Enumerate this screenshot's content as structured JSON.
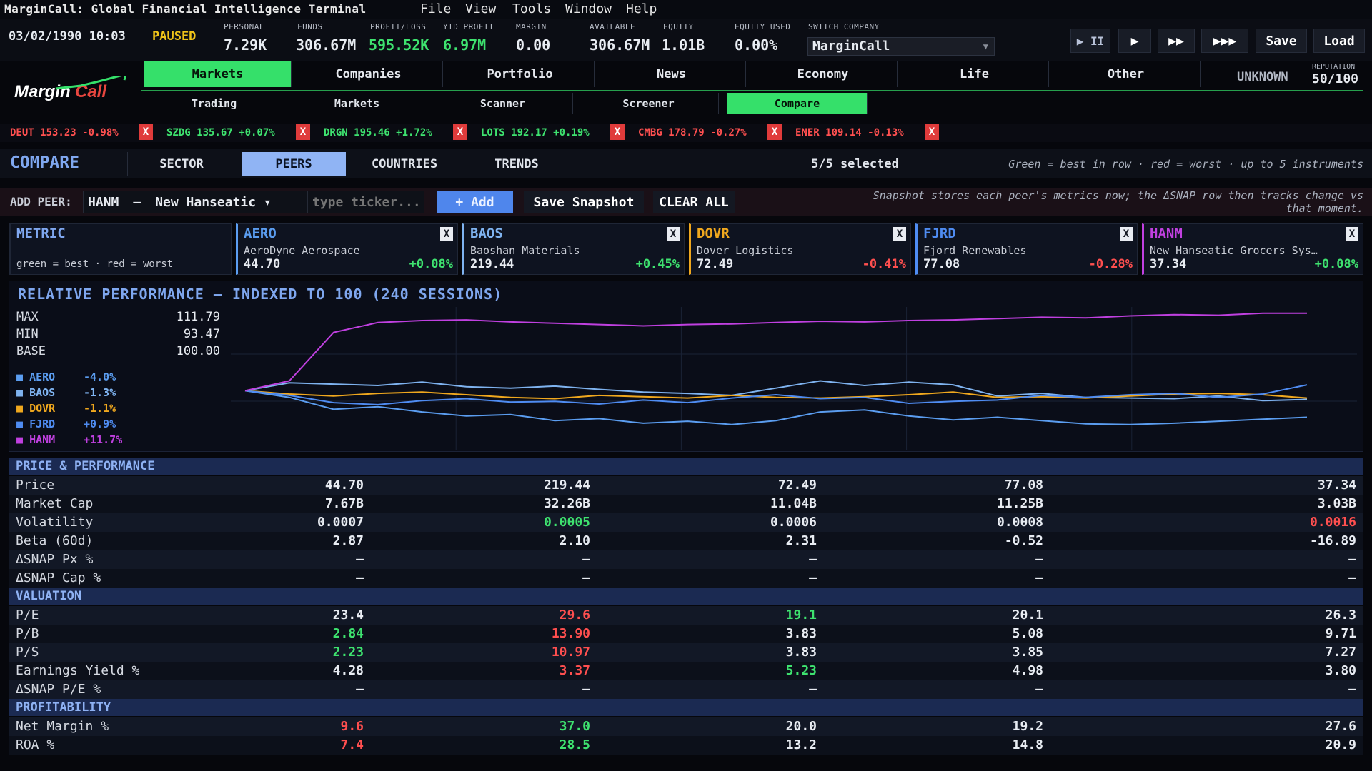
{
  "app": {
    "title": "MarginCall: Global Financial Intelligence Terminal",
    "menu": [
      "File",
      "View",
      "Tools",
      "Window",
      "Help"
    ],
    "logo": "MarginCall"
  },
  "status": {
    "datetime": "03/02/1990 10:03",
    "state": "PAUSED",
    "personal": {
      "label": "PERSONAL",
      "value": "7.29K"
    },
    "funds": {
      "label": "FUNDS",
      "value": "306.67M"
    },
    "pl": {
      "label": "PROFIT/LOSS",
      "value": "595.52K"
    },
    "ytd": {
      "label": "YTD PROFIT",
      "value": "6.97M"
    },
    "margin": {
      "label": "MARGIN",
      "value": "0.00"
    },
    "available": {
      "label": "AVAILABLE",
      "value": "306.67M"
    },
    "equity": {
      "label": "EQUITY",
      "value": "1.01B"
    },
    "equity_used": {
      "label": "EQUITY USED",
      "value": "0.00%"
    },
    "switch_company": {
      "label": "SWITCH COMPANY",
      "value": "MarginCall"
    },
    "controls": {
      "pause": "▶ II",
      "play": "▶",
      "fast": "▶▶",
      "fastest": "▶▶▶",
      "save": "Save",
      "load": "Load"
    }
  },
  "nav": {
    "tabs": [
      "Markets",
      "Companies",
      "Portfolio",
      "News",
      "Economy",
      "Life",
      "Other"
    ],
    "active": "Markets",
    "status": "UNKNOWN",
    "reputation_label": "REPUTATION",
    "reputation": "50/100"
  },
  "subnav": {
    "tabs": [
      "Trading",
      "Markets",
      "Scanner",
      "Screener",
      "Compare"
    ],
    "active": "Compare"
  },
  "ticker_strip": [
    {
      "text": "DEUT 153.23 -0.98%",
      "color": "#ff5050"
    },
    {
      "text": "SZDG 135.67 +0.07%",
      "color": "#3ee26f"
    },
    {
      "text": "DRGN 195.46 +1.72%",
      "color": "#3ee26f"
    },
    {
      "text": "LOTS 192.17 +0.19%",
      "color": "#3ee26f"
    },
    {
      "text": "CMBG 178.79 -0.27%",
      "color": "#ff5050"
    },
    {
      "text": "ENER 109.14 -0.13%",
      "color": "#ff5050"
    }
  ],
  "ticker_remove": "X",
  "compare": {
    "title": "COMPARE",
    "tabs": [
      "SECTOR",
      "PEERS",
      "COUNTRIES",
      "TRENDS"
    ],
    "active": "PEERS",
    "selected": "5/5 selected",
    "hint": "Green = best in row · red = worst · up to 5 instruments"
  },
  "add_peer": {
    "label": "ADD PEER:",
    "ticker": "HANM",
    "dash": "–",
    "company": "New Hanseatic ▾",
    "placeholder": "type ticker...",
    "add": "+ Add",
    "snapshot": "Save Snapshot",
    "clear": "CLEAR ALL",
    "note": "Snapshot stores each peer's metrics now; the ΔSNAP row then tracks change vs that moment."
  },
  "metric_card": {
    "title": "METRIC",
    "sub": "green = best · red = worst"
  },
  "peers": [
    {
      "ticker": "AERO",
      "name": "AeroDyne Aerospace",
      "price": "44.70",
      "change": "+0.08%",
      "up": true,
      "color": "#5b9df0"
    },
    {
      "ticker": "BAOS",
      "name": "Baoshan Materials",
      "price": "219.44",
      "change": "+0.45%",
      "up": true,
      "color": "#7fb3f0"
    },
    {
      "ticker": "DOVR",
      "name": "Dover Logistics",
      "price": "72.49",
      "change": "-0.41%",
      "up": false,
      "color": "#f0a81e"
    },
    {
      "ticker": "FJRD",
      "name": "Fjord Renewables",
      "price": "77.08",
      "change": "-0.28%",
      "up": false,
      "color": "#4f8cf2"
    },
    {
      "ticker": "HANM",
      "name": "New Hanseatic Grocers Sys…",
      "price": "37.34",
      "change": "+0.08%",
      "up": true,
      "color": "#c040e0"
    }
  ],
  "remove_label": "X",
  "chart_data": {
    "type": "line",
    "title": "RELATIVE PERFORMANCE – INDEXED TO 100 (240 SESSIONS)",
    "stats": {
      "max_label": "MAX",
      "max": "111.79",
      "min_label": "MIN",
      "min": "93.47",
      "base_label": "BASE",
      "base": "100.00"
    },
    "ylim": [
      93.47,
      111.79
    ],
    "x": [
      0,
      10,
      20,
      30,
      40,
      50,
      60,
      70,
      80,
      90,
      100,
      110,
      120,
      130,
      140,
      150,
      160,
      170,
      180,
      190,
      200,
      210,
      220,
      230,
      240
    ],
    "series": [
      {
        "name": "AERO",
        "legend_value": "-4.0%",
        "color": "#5b9df0",
        "values": [
          100,
          99.0,
          97.2,
          97.6,
          96.8,
          96.2,
          96.4,
          95.5,
          95.8,
          95.1,
          95.4,
          94.9,
          95.5,
          96.8,
          97.1,
          96.2,
          95.6,
          96.0,
          95.5,
          95.0,
          94.9,
          95.1,
          95.4,
          95.7,
          96.0
        ]
      },
      {
        "name": "BAOS",
        "legend_value": "-1.3%",
        "color": "#7fb3f0",
        "values": [
          100,
          101.2,
          101.0,
          100.8,
          101.3,
          100.6,
          100.4,
          100.7,
          100.2,
          99.8,
          99.6,
          99.3,
          100.4,
          101.5,
          100.8,
          101.3,
          100.9,
          99.2,
          99.6,
          99.0,
          98.9,
          98.8,
          99.2,
          98.5,
          98.7
        ]
      },
      {
        "name": "DOVR",
        "legend_value": "-1.1%",
        "color": "#f0a81e",
        "values": [
          100,
          99.5,
          99.2,
          99.6,
          99.8,
          99.4,
          99.0,
          98.8,
          99.3,
          99.1,
          98.9,
          99.3,
          99.0,
          98.9,
          99.1,
          99.4,
          99.8,
          99.0,
          99.1,
          98.9,
          99.2,
          99.5,
          99.6,
          99.4,
          98.9
        ]
      },
      {
        "name": "FJRD",
        "legend_value": "+0.9%",
        "color": "#4f8cf2",
        "values": [
          100,
          99.3,
          98.2,
          97.9,
          98.5,
          98.8,
          98.3,
          98.4,
          98.0,
          98.6,
          98.2,
          98.9,
          99.4,
          98.8,
          99.0,
          98.1,
          98.4,
          98.6,
          99.3,
          99.0,
          99.4,
          99.6,
          99.0,
          99.5,
          100.9
        ]
      },
      {
        "name": "HANM",
        "legend_value": "+11.7%",
        "color": "#c040e0",
        "values": [
          100,
          101.5,
          108.8,
          110.3,
          110.6,
          110.7,
          110.4,
          110.2,
          110.0,
          109.8,
          110.0,
          110.1,
          110.3,
          110.5,
          110.4,
          110.6,
          110.7,
          110.9,
          111.1,
          111.0,
          111.3,
          111.5,
          111.4,
          111.7,
          111.7
        ]
      }
    ]
  },
  "table": {
    "sections": [
      {
        "title": "PRICE & PERFORMANCE",
        "rows": [
          {
            "label": "Price",
            "values": [
              "44.70",
              "219.44",
              "72.49",
              "77.08",
              "37.34"
            ],
            "flags": [
              "",
              "",
              "",
              "",
              ""
            ]
          },
          {
            "label": "Market Cap",
            "values": [
              "7.67B",
              "32.26B",
              "11.04B",
              "11.25B",
              "3.03B"
            ],
            "flags": [
              "",
              "",
              "",
              "",
              ""
            ]
          },
          {
            "label": "Volatility",
            "values": [
              "0.0007",
              "0.0005",
              "0.0006",
              "0.0008",
              "0.0016"
            ],
            "flags": [
              "",
              "best",
              "",
              "",
              "worst"
            ]
          },
          {
            "label": "Beta (60d)",
            "values": [
              "2.87",
              "2.10",
              "2.31",
              "-0.52",
              "-16.89"
            ],
            "flags": [
              "",
              "",
              "",
              "",
              ""
            ]
          },
          {
            "label": "ΔSNAP Px %",
            "values": [
              "–",
              "–",
              "–",
              "–",
              "–"
            ],
            "flags": [
              "",
              "",
              "",
              "",
              ""
            ]
          },
          {
            "label": "ΔSNAP Cap %",
            "values": [
              "–",
              "–",
              "–",
              "–",
              "–"
            ],
            "flags": [
              "",
              "",
              "",
              "",
              ""
            ]
          }
        ]
      },
      {
        "title": "VALUATION",
        "rows": [
          {
            "label": "P/E",
            "values": [
              "23.4",
              "29.6",
              "19.1",
              "20.1",
              "26.3"
            ],
            "flags": [
              "",
              "worst",
              "best",
              "",
              ""
            ]
          },
          {
            "label": "P/B",
            "values": [
              "2.84",
              "13.90",
              "3.83",
              "5.08",
              "9.71"
            ],
            "flags": [
              "best",
              "worst",
              "",
              "",
              ""
            ]
          },
          {
            "label": "P/S",
            "values": [
              "2.23",
              "10.97",
              "3.83",
              "3.85",
              "7.27"
            ],
            "flags": [
              "best",
              "worst",
              "",
              "",
              ""
            ]
          },
          {
            "label": "Earnings Yield %",
            "values": [
              "4.28",
              "3.37",
              "5.23",
              "4.98",
              "3.80"
            ],
            "flags": [
              "",
              "worst",
              "best",
              "",
              ""
            ]
          },
          {
            "label": "ΔSNAP P/E %",
            "values": [
              "–",
              "–",
              "–",
              "–",
              "–"
            ],
            "flags": [
              "",
              "",
              "",
              "",
              ""
            ]
          }
        ]
      },
      {
        "title": "PROFITABILITY",
        "rows": [
          {
            "label": "Net Margin %",
            "values": [
              "9.6",
              "37.0",
              "20.0",
              "19.2",
              "27.6"
            ],
            "flags": [
              "worst",
              "best",
              "",
              "",
              ""
            ]
          },
          {
            "label": "ROA %",
            "values": [
              "7.4",
              "28.5",
              "13.2",
              "14.8",
              "20.9"
            ],
            "flags": [
              "worst",
              "best",
              "",
              "",
              ""
            ]
          }
        ]
      }
    ]
  },
  "colors": {
    "best": "#3ee26f",
    "worst": "#ff4f4f",
    "accent_green": "#35e06a",
    "accent_blue": "#90b4f4"
  }
}
